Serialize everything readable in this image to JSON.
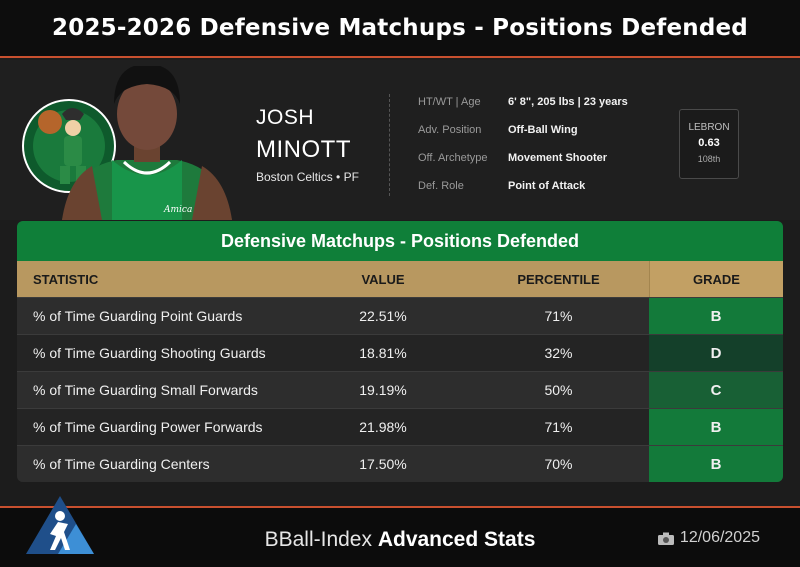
{
  "page": {
    "title": "2025-2026 Defensive Matchups - Positions Defended"
  },
  "player": {
    "first_name": "JOSH",
    "last_name": "MINOTT",
    "team_line": "Boston Celtics • PF",
    "jersey_text": "Amica"
  },
  "info": [
    {
      "label": "HT/WT | Age",
      "value": "6' 8\", 205 lbs | 23 years"
    },
    {
      "label": "Adv. Position",
      "value": "Off-Ball Wing"
    },
    {
      "label": "Off. Archetype",
      "value": "Movement Shooter"
    },
    {
      "label": "Def. Role",
      "value": "Point of Attack"
    }
  ],
  "lebron": {
    "label": "LEBRON",
    "value": "0.63",
    "rank": "108th"
  },
  "table": {
    "title": "Defensive Matchups - Positions Defended",
    "headers": {
      "stat": "STATISTIC",
      "value": "VALUE",
      "percentile": "PERCENTILE",
      "grade": "GRADE"
    },
    "rows": [
      {
        "stat": "% of Time Guarding Point Guards",
        "value": "22.51%",
        "percentile": "71%",
        "grade": "B",
        "grade_color": "#137a3a"
      },
      {
        "stat": "% of Time Guarding Shooting Guards",
        "value": "18.81%",
        "percentile": "32%",
        "grade": "D",
        "grade_color": "#14402a"
      },
      {
        "stat": "% of Time Guarding Small Forwards",
        "value": "19.19%",
        "percentile": "50%",
        "grade": "C",
        "grade_color": "#186035"
      },
      {
        "stat": "% of Time Guarding Power Forwards",
        "value": "21.98%",
        "percentile": "71%",
        "grade": "B",
        "grade_color": "#137a3a"
      },
      {
        "stat": "% of Time Guarding Centers",
        "value": "17.50%",
        "percentile": "70%",
        "grade": "B",
        "grade_color": "#137a3a"
      }
    ]
  },
  "footer": {
    "brand_thin": "BBall-Index",
    "brand_bold": "Advanced Stats",
    "date": "12/06/2025",
    "date_icon": "camera-icon"
  },
  "colors": {
    "accent": "#c8502f",
    "table_green": "#0f7f39",
    "header_gold": "#b89860"
  }
}
